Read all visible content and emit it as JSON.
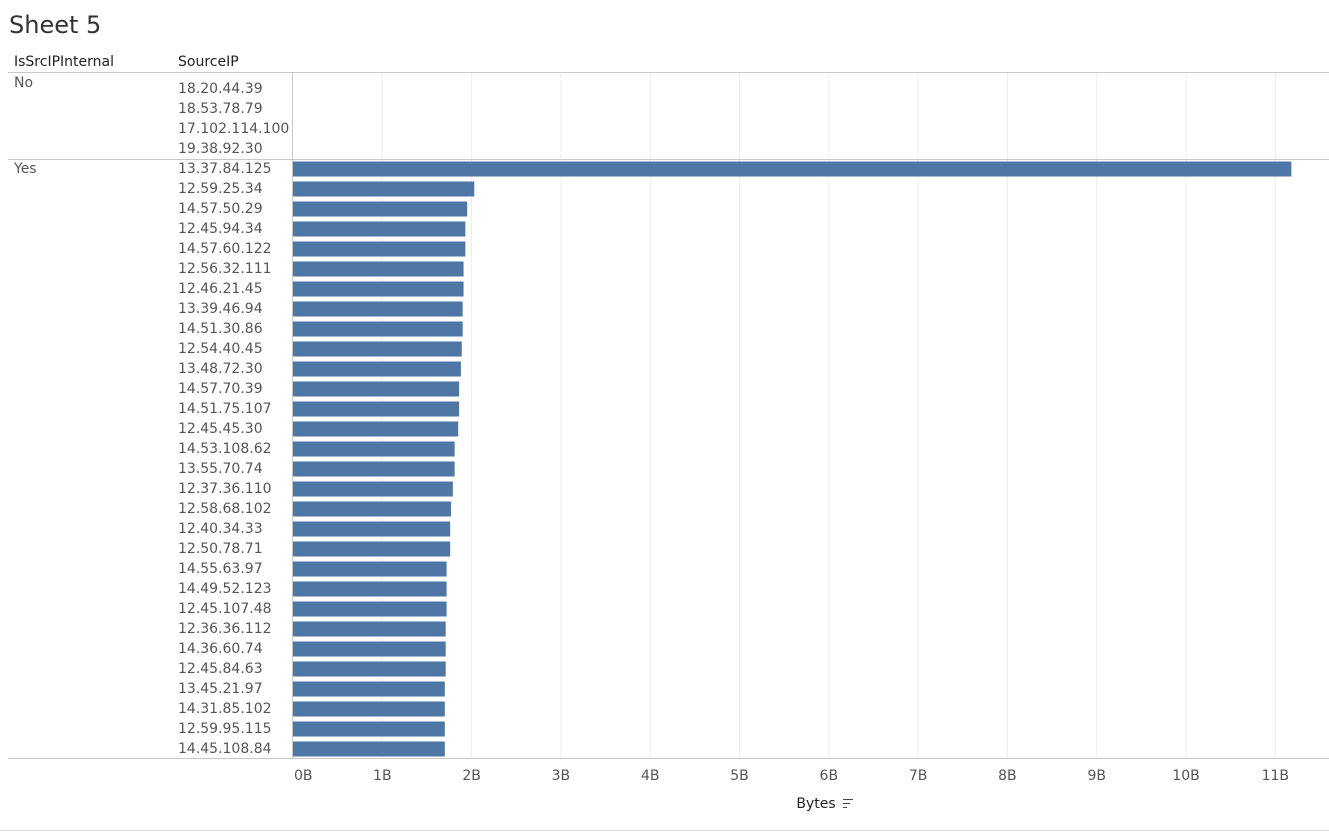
{
  "chart_data": {
    "type": "bar",
    "title": "Sheet 5",
    "row_headers": [
      "IsSrcIPInternal",
      "SourceIP"
    ],
    "x_label": "Bytes",
    "color": "#4e77a5",
    "groups": [
      {
        "name": "No",
        "categories": [
          "18.20.44.39",
          "18.53.78.79",
          "17.102.114.100",
          "19.38.92.30"
        ],
        "values": [
          null,
          null,
          null,
          null
        ]
      },
      {
        "name": "Yes",
        "categories": [
          "13.37.84.125",
          "12.59.25.34",
          "14.57.50.29",
          "12.45.94.34",
          "14.57.60.122",
          "12.56.32.111",
          "12.46.21.45",
          "13.39.46.94",
          "14.51.30.86",
          "12.54.40.45",
          "13.48.72.30",
          "14.57.70.39",
          "14.51.75.107",
          "12.45.45.30",
          "14.53.108.62",
          "13.55.70.74",
          "12.37.36.110",
          "12.58.68.102",
          "12.40.34.33",
          "12.50.78.71",
          "14.55.63.97",
          "14.49.52.123",
          "12.45.107.48",
          "12.36.36.112",
          "14.36.60.74",
          "12.45.84.63",
          "13.45.21.97",
          "14.31.85.102",
          "12.59.95.115",
          "14.45.108.84"
        ],
        "values": [
          11180000000,
          2030000000,
          1950000000,
          1930000000,
          1930000000,
          1910000000,
          1910000000,
          1900000000,
          1900000000,
          1890000000,
          1880000000,
          1860000000,
          1860000000,
          1850000000,
          1810000000,
          1810000000,
          1790000000,
          1770000000,
          1760000000,
          1760000000,
          1720000000,
          1720000000,
          1720000000,
          1710000000,
          1710000000,
          1710000000,
          1700000000,
          1700000000,
          1700000000,
          1700000000
        ]
      }
    ],
    "xlim": [
      0,
      11600000000
    ],
    "xticks": [
      {
        "value": 0,
        "label": "0B"
      },
      {
        "value": 1000000000,
        "label": "1B"
      },
      {
        "value": 2000000000,
        "label": "2B"
      },
      {
        "value": 3000000000,
        "label": "3B"
      },
      {
        "value": 4000000000,
        "label": "4B"
      },
      {
        "value": 5000000000,
        "label": "5B"
      },
      {
        "value": 6000000000,
        "label": "6B"
      },
      {
        "value": 7000000000,
        "label": "7B"
      },
      {
        "value": 8000000000,
        "label": "8B"
      },
      {
        "value": 9000000000,
        "label": "9B"
      },
      {
        "value": 10000000000,
        "label": "10B"
      },
      {
        "value": 11000000000,
        "label": "11B"
      }
    ],
    "grid": true
  }
}
